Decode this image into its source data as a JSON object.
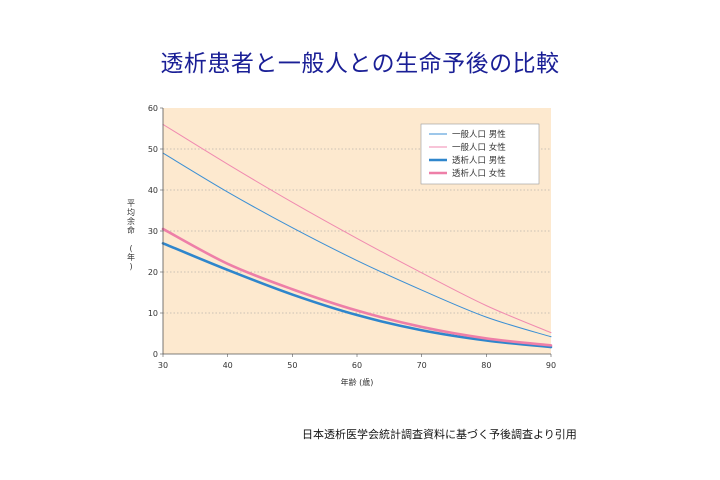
{
  "slide": {
    "title": "透析患者と一般人との生命予後の比較",
    "source_note": "日本透析医学会統計調査資料に基づく予後調査より引用"
  },
  "chart_data": {
    "type": "line",
    "xlabel": "年齢 (歳)",
    "ylabel": "平均余命 (年)",
    "xlim": [
      30,
      90
    ],
    "ylim": [
      0,
      60
    ],
    "xticks": [
      30,
      40,
      50,
      60,
      70,
      80,
      90
    ],
    "yticks": [
      0,
      10,
      20,
      30,
      40,
      50,
      60
    ],
    "grid": "horizontal dotted",
    "legend_position": "top-right",
    "background_color": "#fde9cf",
    "x": [
      30,
      40,
      50,
      60,
      70,
      80,
      90
    ],
    "series": [
      {
        "name": "一般人口 男性",
        "color": "#3b8fd4",
        "width": 1,
        "values": [
          49,
          39.5,
          30.8,
          22.8,
          15.6,
          9.0,
          4.2
        ]
      },
      {
        "name": "一般人口 女性",
        "color": "#f08ab0",
        "width": 1,
        "values": [
          56,
          46.3,
          37.0,
          28.2,
          19.8,
          11.8,
          5.2
        ]
      },
      {
        "name": "透析人口 男性",
        "color": "#2f86cc",
        "width": 2.6,
        "values": [
          27,
          20.5,
          14.5,
          9.5,
          5.8,
          3.3,
          1.7
        ]
      },
      {
        "name": "透析人口 女性",
        "color": "#ee7fa8",
        "width": 2.6,
        "values": [
          30.5,
          22.0,
          15.8,
          10.6,
          6.6,
          3.8,
          2.1
        ]
      }
    ]
  }
}
